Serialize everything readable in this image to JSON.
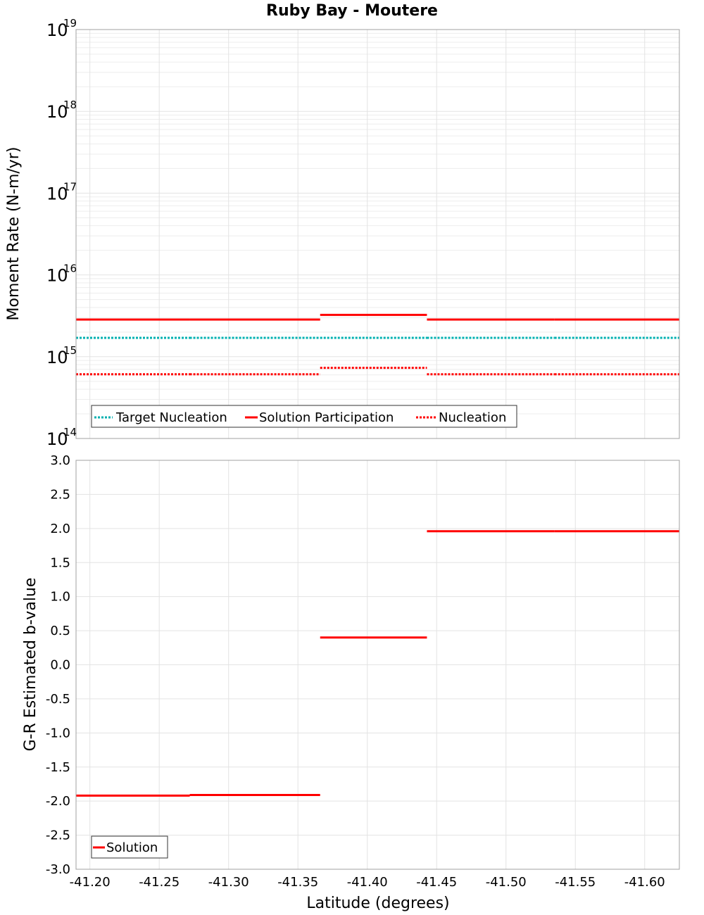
{
  "chart_data": [
    {
      "type": "line",
      "title": "Ruby Bay - Moutere",
      "ylabel": "Moment Rate (N-m/yr)",
      "xlabel": "",
      "yscale": "log",
      "ylim": [
        100000000000000.0,
        1e+19
      ],
      "xlim": [
        -41.19,
        -41.625
      ],
      "y_tick_exponents": [
        "14",
        "15",
        "16",
        "17",
        "18",
        "19"
      ],
      "y_tick_base": "10",
      "legend_position": "bottom-left",
      "series": [
        {
          "name": "Target Nucleation",
          "color": "#00b0b0",
          "style": "dotted",
          "segments": [
            {
              "x": [
                -41.19,
                -41.272
              ],
              "y": 1700000000000000.0
            },
            {
              "x": [
                -41.272,
                -41.366
              ],
              "y": 1700000000000000.0
            },
            {
              "x": [
                -41.366,
                -41.443
              ],
              "y": 1700000000000000.0
            },
            {
              "x": [
                -41.443,
                -41.535
              ],
              "y": 1700000000000000.0
            },
            {
              "x": [
                -41.535,
                -41.625
              ],
              "y": 1700000000000000.0
            }
          ]
        },
        {
          "name": "Solution Participation",
          "color": "#ff0000",
          "style": "solid",
          "segments": [
            {
              "x": [
                -41.19,
                -41.272
              ],
              "y": 2850000000000000.0
            },
            {
              "x": [
                -41.272,
                -41.366
              ],
              "y": 2850000000000000.0
            },
            {
              "x": [
                -41.366,
                -41.443
              ],
              "y": 3250000000000000.0
            },
            {
              "x": [
                -41.443,
                -41.535
              ],
              "y": 2850000000000000.0
            },
            {
              "x": [
                -41.535,
                -41.625
              ],
              "y": 2850000000000000.0
            }
          ]
        },
        {
          "name": "Nucleation",
          "color": "#ff0000",
          "style": "dotted",
          "segments": [
            {
              "x": [
                -41.19,
                -41.272
              ],
              "y": 610000000000000.0
            },
            {
              "x": [
                -41.272,
                -41.366
              ],
              "y": 610000000000000.0
            },
            {
              "x": [
                -41.366,
                -41.443
              ],
              "y": 730000000000000.0
            },
            {
              "x": [
                -41.443,
                -41.535
              ],
              "y": 610000000000000.0
            },
            {
              "x": [
                -41.535,
                -41.625
              ],
              "y": 610000000000000.0
            }
          ]
        }
      ]
    },
    {
      "type": "line",
      "title": "",
      "ylabel": "G-R Estimated b-value",
      "xlabel": "Latitude (degrees)",
      "ylim": [
        -3.0,
        3.0
      ],
      "xlim": [
        -41.19,
        -41.625
      ],
      "y_ticks": [
        "-3.0",
        "-2.5",
        "-2.0",
        "-1.5",
        "-1.0",
        "-0.5",
        "0.0",
        "0.5",
        "1.0",
        "1.5",
        "2.0",
        "2.5",
        "3.0"
      ],
      "x_ticks": [
        "-41.20",
        "-41.25",
        "-41.30",
        "-41.35",
        "-41.40",
        "-41.45",
        "-41.50",
        "-41.55",
        "-41.60"
      ],
      "legend_position": "bottom-left",
      "series": [
        {
          "name": "Solution",
          "color": "#ff0000",
          "style": "solid",
          "segments": [
            {
              "x": [
                -41.19,
                -41.272
              ],
              "y": -1.92
            },
            {
              "x": [
                -41.272,
                -41.366
              ],
              "y": -1.91
            },
            {
              "x": [
                -41.366,
                -41.443
              ],
              "y": 0.4
            },
            {
              "x": [
                -41.443,
                -41.535
              ],
              "y": 1.96
            },
            {
              "x": [
                -41.535,
                -41.625
              ],
              "y": 1.96
            }
          ]
        }
      ]
    }
  ]
}
